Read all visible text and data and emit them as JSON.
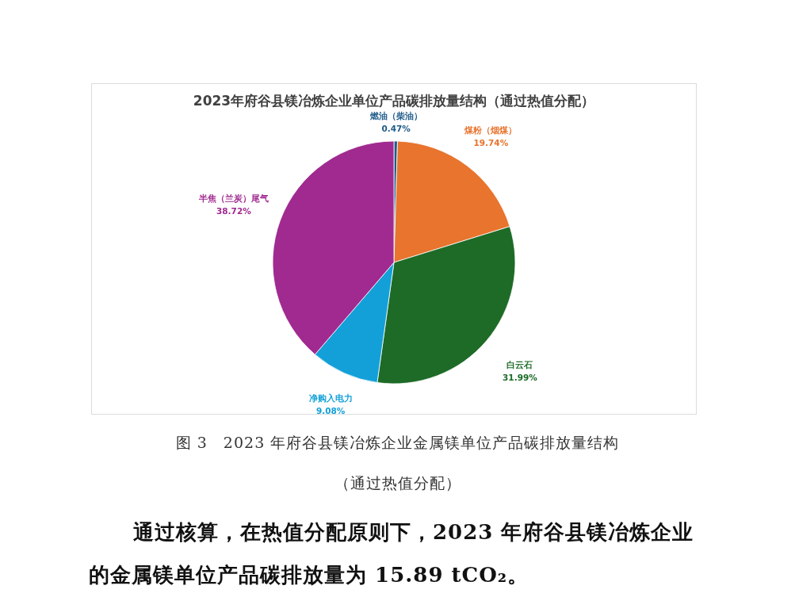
{
  "chart_data": {
    "type": "pie",
    "title": "2023年府谷县镁冶炼企业单位产品碳排放量结构（通过热值分配）",
    "categories": [
      "燃油（柴油）",
      "煤粉（烟煤）",
      "白云石",
      "净购入电力",
      "半焦（兰炭）尾气"
    ],
    "values": [
      0.47,
      19.74,
      31.99,
      9.08,
      38.72
    ],
    "value_labels": [
      "0.47%",
      "19.74%",
      "31.99%",
      "9.08%",
      "38.72%"
    ],
    "colors": [
      "#1f5c8a",
      "#e8742e",
      "#1d6b27",
      "#13a0d8",
      "#a02a90"
    ],
    "annotations": [
      "图 3　2023 年府谷县镁冶炼企业金属镁单位产品碳排放量结构",
      "（通过热值分配）",
      "通过核算，在热值分配原则下，2023 年府谷县镁冶炼企业的金属镁单位产品碳排放量为 15.89 tCO₂。"
    ]
  }
}
